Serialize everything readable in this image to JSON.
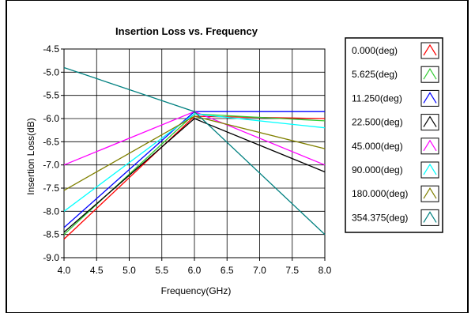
{
  "chart_data": {
    "type": "line",
    "title": "Insertion Loss vs. Frequency",
    "xlabel": "Frequency(GHz)",
    "ylabel": "Insertion Loss(dB)",
    "xlim": [
      4.0,
      8.0
    ],
    "ylim": [
      -9.0,
      -4.5
    ],
    "x_ticks": [
      "4.0",
      "4.5",
      "5.0",
      "5.5",
      "6.0",
      "6.5",
      "7.0",
      "7.5",
      "8.0"
    ],
    "y_ticks": [
      "-4.5",
      "-5.0",
      "-5.5",
      "-6.0",
      "-6.5",
      "-7.0",
      "-7.5",
      "-8.0",
      "-8.5",
      "-9.0"
    ],
    "grid": true,
    "legend_position": "right",
    "x": [
      4.0,
      6.0,
      8.0
    ],
    "series": [
      {
        "name": "0.000(deg)",
        "color": "#ff0000",
        "values": [
          -8.6,
          -5.95,
          -6.0
        ]
      },
      {
        "name": "5.625(deg)",
        "color": "#33cc33",
        "values": [
          -8.5,
          -5.9,
          -6.05
        ]
      },
      {
        "name": "11.250(deg)",
        "color": "#0000ff",
        "values": [
          -8.35,
          -5.85,
          -5.85
        ]
      },
      {
        "name": "22.500(deg)",
        "color": "#000000",
        "values": [
          -8.45,
          -6.0,
          -7.15
        ]
      },
      {
        "name": "45.000(deg)",
        "color": "#ff00ff",
        "values": [
          -7.0,
          -5.85,
          -7.0
        ]
      },
      {
        "name": "90.000(deg)",
        "color": "#00ffff",
        "values": [
          -8.0,
          -5.9,
          -6.2
        ]
      },
      {
        "name": "180.000(deg)",
        "color": "#808000",
        "values": [
          -7.55,
          -5.95,
          -6.65
        ]
      },
      {
        "name": "354.375(deg)",
        "color": "#008080",
        "values": [
          -4.9,
          -5.85,
          -8.5
        ]
      }
    ]
  }
}
